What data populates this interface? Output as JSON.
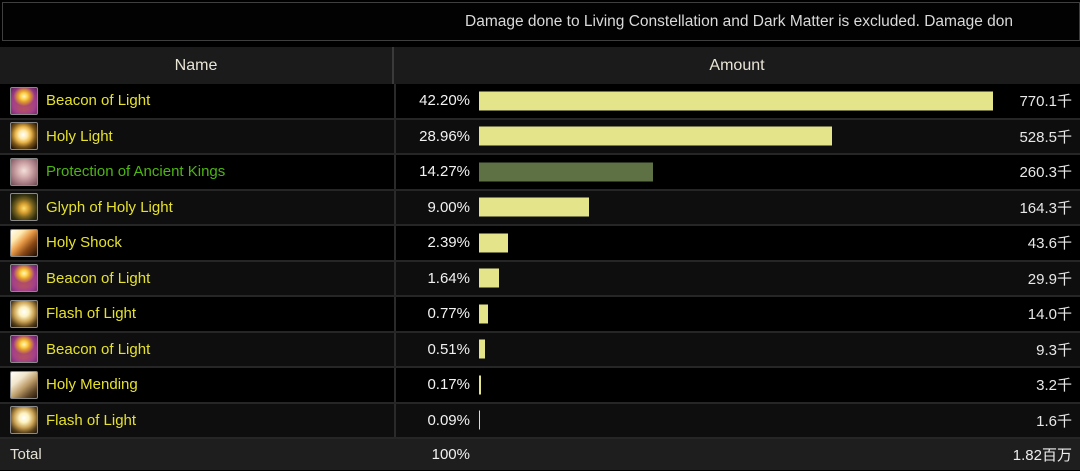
{
  "banner": {
    "text": "Damage done to Living Constellation and Dark Matter is excluded. Damage don"
  },
  "table": {
    "columns": {
      "name": "Name",
      "amount": "Amount"
    },
    "total": {
      "label": "Total",
      "percent": "100%",
      "amount": "1.82百万"
    }
  },
  "colors": {
    "bar_yellow": "#e4e48a",
    "bar_olive": "#5e7144",
    "name_yellow": "#e6e22c",
    "name_green": "#4db513",
    "header_bg": "#1b1b1b",
    "row_alt_bg": "#0e0e0e",
    "total_bg": "#1e1e1e"
  },
  "chart_data": {
    "type": "bar",
    "title": "Damage done by ability",
    "xlabel": "Amount",
    "ylabel": "Name",
    "legend": "none",
    "max_pct": 42.2,
    "rows": [
      {
        "name": "Beacon of Light",
        "icon": "beacon-of-light-icon",
        "pct": 42.2,
        "pct_label": "42.20%",
        "amount": "770.1千",
        "bar_color": "#e4e48a",
        "name_color": "#e6e22c"
      },
      {
        "name": "Holy Light",
        "icon": "holy-light-icon",
        "pct": 28.96,
        "pct_label": "28.96%",
        "amount": "528.5千",
        "bar_color": "#e4e48a",
        "name_color": "#e6e22c"
      },
      {
        "name": "Protection of Ancient Kings",
        "icon": "protection-of-ancient-kings-icon",
        "pct": 14.27,
        "pct_label": "14.27%",
        "amount": "260.3千",
        "bar_color": "#5e7144",
        "name_color": "#4db513"
      },
      {
        "name": "Glyph of Holy Light",
        "icon": "glyph-of-holy-light-icon",
        "pct": 9.0,
        "pct_label": "9.00%",
        "amount": "164.3千",
        "bar_color": "#e4e48a",
        "name_color": "#e6e22c"
      },
      {
        "name": "Holy Shock",
        "icon": "holy-shock-icon",
        "pct": 2.39,
        "pct_label": "2.39%",
        "amount": "43.6千",
        "bar_color": "#e4e48a",
        "name_color": "#e6e22c"
      },
      {
        "name": "Beacon of Light",
        "icon": "beacon-of-light-icon",
        "pct": 1.64,
        "pct_label": "1.64%",
        "amount": "29.9千",
        "bar_color": "#e4e48a",
        "name_color": "#e6e22c"
      },
      {
        "name": "Flash of Light",
        "icon": "flash-of-light-icon",
        "pct": 0.77,
        "pct_label": "0.77%",
        "amount": "14.0千",
        "bar_color": "#e4e48a",
        "name_color": "#e6e22c"
      },
      {
        "name": "Beacon of Light",
        "icon": "beacon-of-light-icon",
        "pct": 0.51,
        "pct_label": "0.51%",
        "amount": "9.3千",
        "bar_color": "#e4e48a",
        "name_color": "#e6e22c"
      },
      {
        "name": "Holy Mending",
        "icon": "holy-mending-icon",
        "pct": 0.17,
        "pct_label": "0.17%",
        "amount": "3.2千",
        "bar_color": "#e4e48a",
        "name_color": "#e6e22c"
      },
      {
        "name": "Flash of Light",
        "icon": "flash-of-light-icon",
        "pct": 0.09,
        "pct_label": "0.09%",
        "amount": "1.6千",
        "bar_color": "#e4e48a",
        "name_color": "#e6e22c"
      }
    ]
  }
}
